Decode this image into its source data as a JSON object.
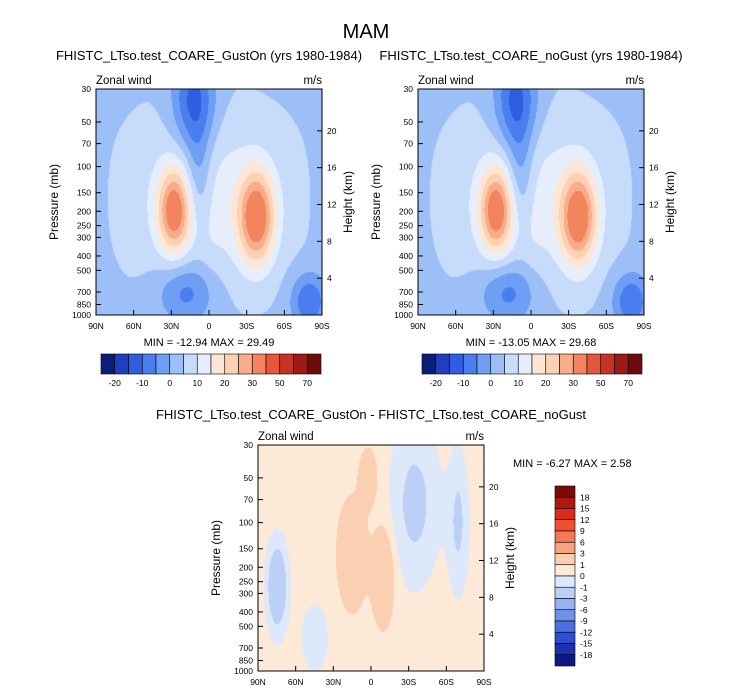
{
  "figure": {
    "title": "MAM"
  },
  "chart_data": [
    {
      "type": "heatmap",
      "name": "panel-gust-on",
      "title": "FHISTC_LTso.test_COARE_GustOn (yrs 1980-1984)",
      "left_label": "Zonal wind",
      "right_label": "m/s",
      "ylabel": "Pressure (mb)",
      "ylabel_right": "Height (km)",
      "minmax": "MIN = -12.94  MAX = 29.49",
      "stats": {
        "min": -12.94,
        "max": 29.49
      },
      "x_ticks": [
        "90N",
        "60N",
        "30N",
        "0",
        "30S",
        "60S",
        "90S"
      ],
      "y_ticks": [
        "30",
        "50",
        "70",
        "100",
        "150",
        "200",
        "250",
        "300",
        "400",
        "500",
        "700",
        "850",
        "1000"
      ],
      "height_ticks": [
        "20",
        "16",
        "12",
        "8",
        "4"
      ],
      "scale": "main",
      "field": "main"
    },
    {
      "type": "heatmap",
      "name": "panel-no-gust",
      "title": "FHISTC_LTso.test_COARE_noGust (yrs 1980-1984)",
      "left_label": "Zonal wind",
      "right_label": "m/s",
      "ylabel": "Pressure (mb)",
      "ylabel_right": "Height (km)",
      "minmax": "MIN = -13.05  MAX = 29.68",
      "stats": {
        "min": -13.05,
        "max": 29.68
      },
      "x_ticks": [
        "90N",
        "60N",
        "30N",
        "0",
        "30S",
        "60S",
        "90S"
      ],
      "y_ticks": [
        "30",
        "50",
        "70",
        "100",
        "150",
        "200",
        "250",
        "300",
        "400",
        "500",
        "700",
        "850",
        "1000"
      ],
      "height_ticks": [
        "20",
        "16",
        "12",
        "8",
        "4"
      ],
      "scale": "main",
      "field": "main"
    },
    {
      "type": "heatmap",
      "name": "panel-difference",
      "title": "FHISTC_LTso.test_COARE_GustOn - FHISTC_LTso.test_COARE_noGust",
      "left_label": "Zonal wind",
      "right_label": "m/s",
      "ylabel": "Pressure (mb)",
      "ylabel_right": "Height (km)",
      "minmax": "MIN = -6.27  MAX =  2.58",
      "stats": {
        "min": -6.27,
        "max": 2.58
      },
      "x_ticks": [
        "90N",
        "60N",
        "30N",
        "0",
        "30S",
        "60S",
        "90S"
      ],
      "y_ticks": [
        "30",
        "50",
        "70",
        "100",
        "150",
        "200",
        "250",
        "300",
        "400",
        "500",
        "700",
        "850",
        "1000"
      ],
      "height_ticks": [
        "20",
        "16",
        "12",
        "8",
        "4"
      ],
      "scale": "diff",
      "field": "diff"
    }
  ],
  "colorbars": {
    "main": {
      "labels": [
        "-20",
        "-10",
        "0",
        "10",
        "20",
        "30",
        "50",
        "70"
      ],
      "colors": [
        "#0a1f7a",
        "#1f3fbf",
        "#2f5fe0",
        "#4a7eee",
        "#6f9ef5",
        "#9dbff8",
        "#c7dbfa",
        "#e6eefb",
        "#fde7d4",
        "#fcd0b2",
        "#f8ad8a",
        "#f2845f",
        "#e4573a",
        "#c73222",
        "#9e1a14",
        "#6e0b0b"
      ]
    },
    "diff": {
      "labels": [
        "18",
        "15",
        "12",
        "9",
        "6",
        "3",
        "1",
        "0",
        "-1",
        "-3",
        "-6",
        "-9",
        "-12",
        "-15",
        "-18"
      ],
      "colors": [
        "#7a0a0a",
        "#b0170f",
        "#da2d17",
        "#ef5130",
        "#f47a55",
        "#f8a37f",
        "#fbcfb1",
        "#fde9d8",
        "#dde8fb",
        "#bcd0f7",
        "#95b3f2",
        "#6f92ec",
        "#4a70e2",
        "#2b4fd0",
        "#1a32b0",
        "#0d1a86"
      ]
    }
  }
}
